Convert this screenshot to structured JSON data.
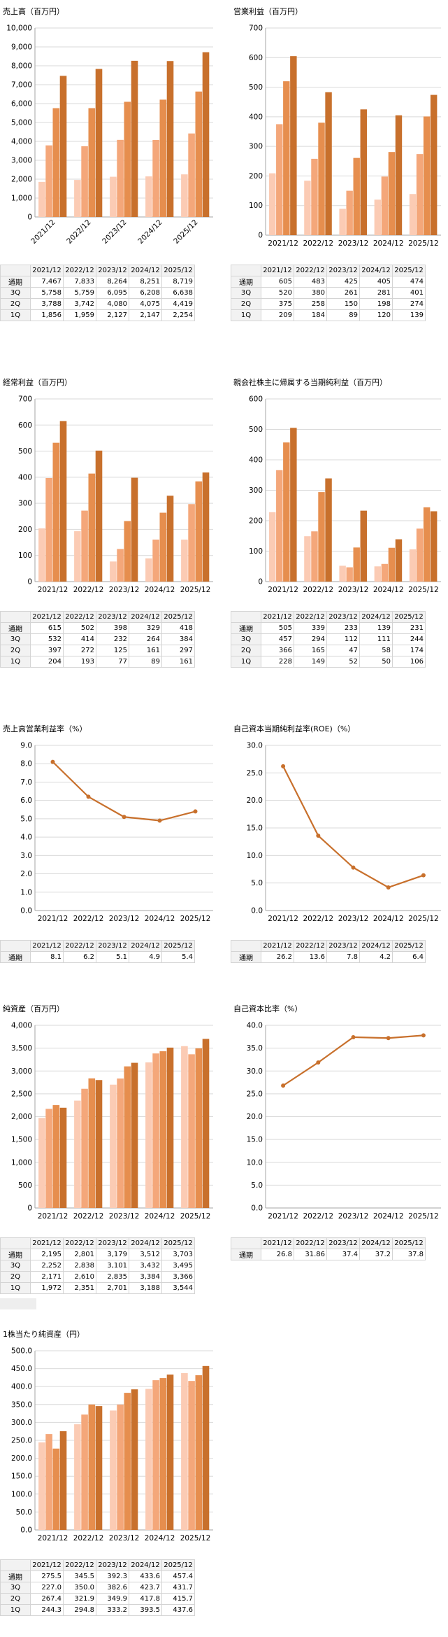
{
  "years": [
    "2021/12",
    "2022/12",
    "2023/12",
    "2024/12",
    "2025/12"
  ],
  "quarters": [
    "1Q",
    "2Q",
    "3Q",
    "通期"
  ],
  "colors": {
    "quarters": [
      "#fbcbb4",
      "#f4a77a",
      "#e68e4e",
      "#c8702c"
    ],
    "line": "#c8702c",
    "grid": "#d9d9d9",
    "axis": "#a6a6a6"
  },
  "chart_data": [
    {
      "id": "sales",
      "type": "bar",
      "title": "売上高（百万円）",
      "categories": [
        "2021/12",
        "2022/12",
        "2023/12",
        "2024/12",
        "2025/12"
      ],
      "ylim": [
        0,
        10000
      ],
      "yticks": [
        "0",
        "1,000",
        "2,000",
        "3,000",
        "4,000",
        "5,000",
        "6,000",
        "7,000",
        "8,000",
        "9,000",
        "10,000"
      ],
      "ystep": 1000,
      "xlabel_rotate": true,
      "series": [
        {
          "name": "1Q",
          "values": [
            1856,
            1959,
            2127,
            2147,
            2254
          ]
        },
        {
          "name": "2Q",
          "values": [
            3788,
            3742,
            4080,
            4075,
            4419
          ]
        },
        {
          "name": "3Q",
          "values": [
            5758,
            5759,
            6095,
            6208,
            6638
          ]
        },
        {
          "name": "通期",
          "values": [
            7467,
            7833,
            8264,
            8251,
            8719
          ]
        }
      ],
      "table": {
        "rows": [
          {
            "label": "通期",
            "cells": [
              "7,467",
              "7,833",
              "8,264",
              "8,251",
              "8,719"
            ]
          },
          {
            "label": "3Q",
            "cells": [
              "5,758",
              "5,759",
              "6,095",
              "6,208",
              "6,638"
            ]
          },
          {
            "label": "2Q",
            "cells": [
              "3,788",
              "3,742",
              "4,080",
              "4,075",
              "4,419"
            ]
          },
          {
            "label": "1Q",
            "cells": [
              "1,856",
              "1,959",
              "2,127",
              "2,147",
              "2,254"
            ]
          }
        ]
      }
    },
    {
      "id": "op_income",
      "type": "bar",
      "title": "営業利益（百万円）",
      "categories": [
        "2021/12",
        "2022/12",
        "2023/12",
        "2024/12",
        "2025/12"
      ],
      "ylim": [
        0,
        700
      ],
      "yticks": [
        "0",
        "100",
        "200",
        "300",
        "400",
        "500",
        "600",
        "700"
      ],
      "ystep": 100,
      "series": [
        {
          "name": "1Q",
          "values": [
            209,
            184,
            89,
            120,
            139
          ]
        },
        {
          "name": "2Q",
          "values": [
            375,
            258,
            150,
            198,
            274
          ]
        },
        {
          "name": "3Q",
          "values": [
            520,
            380,
            261,
            281,
            401
          ]
        },
        {
          "name": "通期",
          "values": [
            605,
            483,
            425,
            405,
            474
          ]
        }
      ],
      "table": {
        "rows": [
          {
            "label": "通期",
            "cells": [
              "605",
              "483",
              "425",
              "405",
              "474"
            ]
          },
          {
            "label": "3Q",
            "cells": [
              "520",
              "380",
              "261",
              "281",
              "401"
            ]
          },
          {
            "label": "2Q",
            "cells": [
              "375",
              "258",
              "150",
              "198",
              "274"
            ]
          },
          {
            "label": "1Q",
            "cells": [
              "209",
              "184",
              "89",
              "120",
              "139"
            ]
          }
        ]
      }
    },
    {
      "id": "ord_income",
      "type": "bar",
      "title": "経常利益（百万円）",
      "categories": [
        "2021/12",
        "2022/12",
        "2023/12",
        "2024/12",
        "2025/12"
      ],
      "ylim": [
        0,
        700
      ],
      "yticks": [
        "0",
        "100",
        "200",
        "300",
        "400",
        "500",
        "600",
        "700"
      ],
      "ystep": 100,
      "series": [
        {
          "name": "1Q",
          "values": [
            204,
            193,
            77,
            89,
            161
          ]
        },
        {
          "name": "2Q",
          "values": [
            397,
            272,
            125,
            161,
            297
          ]
        },
        {
          "name": "3Q",
          "values": [
            532,
            414,
            232,
            264,
            384
          ]
        },
        {
          "name": "通期",
          "values": [
            615,
            502,
            398,
            329,
            418
          ]
        }
      ],
      "table": {
        "rows": [
          {
            "label": "通期",
            "cells": [
              "615",
              "502",
              "398",
              "329",
              "418"
            ]
          },
          {
            "label": "3Q",
            "cells": [
              "532",
              "414",
              "232",
              "264",
              "384"
            ]
          },
          {
            "label": "2Q",
            "cells": [
              "397",
              "272",
              "125",
              "161",
              "297"
            ]
          },
          {
            "label": "1Q",
            "cells": [
              "204",
              "193",
              "77",
              "89",
              "161"
            ]
          }
        ]
      }
    },
    {
      "id": "net_income",
      "type": "bar",
      "title": "親会社株主に帰属する当期純利益（百万円）",
      "categories": [
        "2021/12",
        "2022/12",
        "2023/12",
        "2024/12",
        "2025/12"
      ],
      "ylim": [
        0,
        600
      ],
      "yticks": [
        "0",
        "100",
        "200",
        "300",
        "400",
        "500",
        "600"
      ],
      "ystep": 100,
      "series": [
        {
          "name": "1Q",
          "values": [
            228,
            149,
            52,
            50,
            106
          ]
        },
        {
          "name": "2Q",
          "values": [
            366,
            165,
            47,
            58,
            174
          ]
        },
        {
          "name": "3Q",
          "values": [
            457,
            294,
            112,
            111,
            244
          ]
        },
        {
          "name": "通期",
          "values": [
            505,
            339,
            233,
            139,
            231
          ]
        }
      ],
      "table": {
        "rows": [
          {
            "label": "通期",
            "cells": [
              "505",
              "339",
              "233",
              "139",
              "231"
            ]
          },
          {
            "label": "3Q",
            "cells": [
              "457",
              "294",
              "112",
              "111",
              "244"
            ]
          },
          {
            "label": "2Q",
            "cells": [
              "366",
              "165",
              "47",
              "58",
              "174"
            ]
          },
          {
            "label": "1Q",
            "cells": [
              "228",
              "149",
              "52",
              "50",
              "106"
            ]
          }
        ]
      }
    },
    {
      "id": "op_margin",
      "type": "line",
      "title": "売上高営業利益率（%）",
      "categories": [
        "2021/12",
        "2022/12",
        "2023/12",
        "2024/12",
        "2025/12"
      ],
      "ylim": [
        0,
        9
      ],
      "yticks": [
        "0.0",
        "1.0",
        "2.0",
        "3.0",
        "4.0",
        "5.0",
        "6.0",
        "7.0",
        "8.0",
        "9.0"
      ],
      "ystep": 1,
      "series": [
        {
          "name": "通期",
          "values": [
            8.1,
            6.2,
            5.1,
            4.9,
            5.4
          ]
        }
      ],
      "table": {
        "rows": [
          {
            "label": "通期",
            "cells": [
              "8.1",
              "6.2",
              "5.1",
              "4.9",
              "5.4"
            ]
          }
        ]
      }
    },
    {
      "id": "roe",
      "type": "line",
      "title": "自己資本当期純利益率(ROE)（%）",
      "categories": [
        "2021/12",
        "2022/12",
        "2023/12",
        "2024/12",
        "2025/12"
      ],
      "ylim": [
        0,
        30
      ],
      "yticks": [
        "0.0",
        "5.0",
        "10.0",
        "15.0",
        "20.0",
        "25.0",
        "30.0"
      ],
      "ystep": 5,
      "series": [
        {
          "name": "通期",
          "values": [
            26.2,
            13.6,
            7.8,
            4.2,
            6.4
          ]
        }
      ],
      "table": {
        "rows": [
          {
            "label": "通期",
            "cells": [
              "26.2",
              "13.6",
              "7.8",
              "4.2",
              "6.4"
            ]
          }
        ]
      }
    },
    {
      "id": "net_assets",
      "type": "bar",
      "title": "純資産（百万円）",
      "categories": [
        "2021/12",
        "2022/12",
        "2023/12",
        "2024/12",
        "2025/12"
      ],
      "ylim": [
        0,
        4000
      ],
      "yticks": [
        "0",
        "500",
        "1,000",
        "1,500",
        "2,000",
        "2,500",
        "3,000",
        "3,500",
        "4,000"
      ],
      "ystep": 500,
      "series": [
        {
          "name": "1Q",
          "values": [
            1972,
            2351,
            2701,
            3188,
            3544
          ]
        },
        {
          "name": "2Q",
          "values": [
            2171,
            2610,
            2835,
            3384,
            3366
          ]
        },
        {
          "name": "3Q",
          "values": [
            2252,
            2838,
            3101,
            3432,
            3495
          ]
        },
        {
          "name": "通期",
          "values": [
            2195,
            2801,
            3179,
            3512,
            3703
          ]
        }
      ],
      "table": {
        "rows": [
          {
            "label": "通期",
            "cells": [
              "2,195",
              "2,801",
              "3,179",
              "3,512",
              "3,703"
            ]
          },
          {
            "label": "3Q",
            "cells": [
              "2,252",
              "2,838",
              "3,101",
              "3,432",
              "3,495"
            ]
          },
          {
            "label": "2Q",
            "cells": [
              "2,171",
              "2,610",
              "2,835",
              "3,384",
              "3,366"
            ]
          },
          {
            "label": "1Q",
            "cells": [
              "1,972",
              "2,351",
              "2,701",
              "3,188",
              "3,544"
            ]
          }
        ]
      }
    },
    {
      "id": "equity_ratio",
      "type": "line",
      "title": "自己資本比率（%）",
      "categories": [
        "2021/12",
        "2022/12",
        "2023/12",
        "2024/12",
        "2025/12"
      ],
      "ylim": [
        0,
        40
      ],
      "yticks": [
        "0.0",
        "5.0",
        "10.0",
        "15.0",
        "20.0",
        "25.0",
        "30.0",
        "35.0",
        "40.0"
      ],
      "ystep": 5,
      "series": [
        {
          "name": "通期",
          "values": [
            26.8,
            31.86,
            37.4,
            37.2,
            37.8
          ]
        }
      ],
      "table": {
        "rows": [
          {
            "label": "通期",
            "cells": [
              "26.8",
              "31.86",
              "37.4",
              "37.2",
              "37.8"
            ]
          }
        ]
      }
    },
    {
      "id": "bps",
      "type": "bar",
      "title": "1株当たり純資産（円）",
      "categories": [
        "2021/12",
        "2022/12",
        "2023/12",
        "2024/12",
        "2025/12"
      ],
      "ylim": [
        0,
        500
      ],
      "yticks": [
        "0.0",
        "50.0",
        "100.0",
        "150.0",
        "200.0",
        "250.0",
        "300.0",
        "350.0",
        "400.0",
        "450.0",
        "500.0"
      ],
      "ystep": 50,
      "series": [
        {
          "name": "1Q",
          "values": [
            244.3,
            294.8,
            333.2,
            393.5,
            437.6
          ]
        },
        {
          "name": "2Q",
          "values": [
            267.4,
            321.9,
            349.9,
            417.8,
            415.7
          ]
        },
        {
          "name": "3Q",
          "values": [
            227.0,
            350.0,
            382.6,
            423.7,
            431.7
          ]
        },
        {
          "name": "通期",
          "values": [
            275.5,
            345.5,
            392.3,
            433.6,
            457.4
          ]
        }
      ],
      "table": {
        "rows": [
          {
            "label": "通期",
            "cells": [
              "275.5",
              "345.5",
              "392.3",
              "433.6",
              "457.4"
            ]
          },
          {
            "label": "3Q",
            "cells": [
              "227.0",
              "350.0",
              "382.6",
              "423.7",
              "431.7"
            ]
          },
          {
            "label": "2Q",
            "cells": [
              "267.4",
              "321.9",
              "349.9",
              "417.8",
              "415.7"
            ]
          },
          {
            "label": "1Q",
            "cells": [
              "244.3",
              "294.8",
              "333.2",
              "393.5",
              "437.6"
            ]
          }
        ]
      }
    }
  ]
}
